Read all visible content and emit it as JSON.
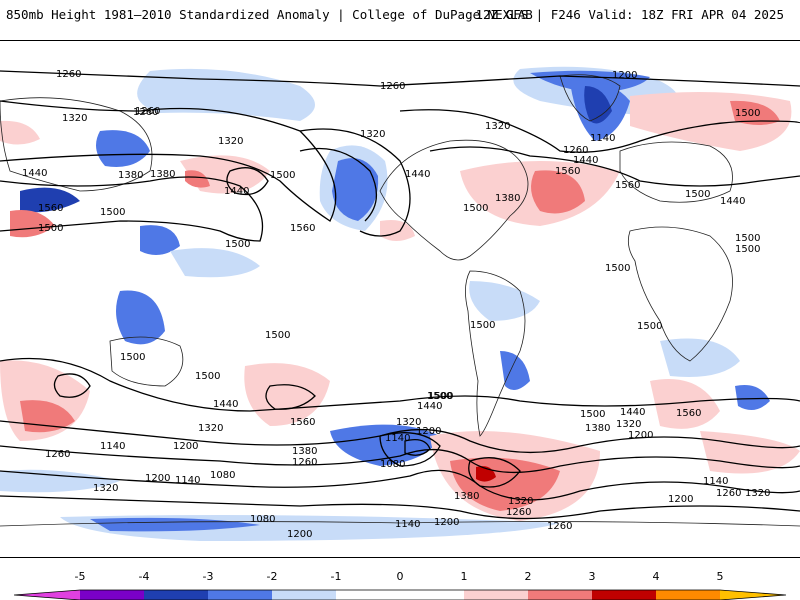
{
  "header": {
    "title_left": "850mb Height 1981–2010 Standardized Anomaly | College of DuPage NEXLAB",
    "title_right": "12Z GFS | F246 Valid: 18Z FRI APR 04 2025"
  },
  "legend": {
    "tick_labels": [
      "-5",
      "-4",
      "-3",
      "-2",
      "-1",
      "0",
      "1",
      "2",
      "3",
      "4",
      "5"
    ],
    "colors": {
      "neg5": "#e040e0",
      "neg4": "#7a00c8",
      "neg3": "#1f3fb0",
      "neg2": "#4f78e6",
      "neg1": "#c8dcf8",
      "zero": "#ffffff",
      "pos1": "#fbd0d0",
      "pos2": "#f07a7a",
      "pos3": "#c00000",
      "pos4": "#ff8a00",
      "pos5": "#ffc000"
    }
  },
  "map": {
    "contour_labels": [
      {
        "text": "1260"
      },
      {
        "text": "1260"
      },
      {
        "text": "1320"
      },
      {
        "text": "1440"
      },
      {
        "text": "1380"
      },
      {
        "text": "1560"
      },
      {
        "text": "1500"
      },
      {
        "text": "1500"
      },
      {
        "text": "1440"
      },
      {
        "text": "1500"
      },
      {
        "text": "1320"
      },
      {
        "text": "1260"
      },
      {
        "text": "1380"
      },
      {
        "text": "1560"
      },
      {
        "text": "1500"
      },
      {
        "text": "1260"
      },
      {
        "text": "1200"
      },
      {
        "text": "1320"
      },
      {
        "text": "1320"
      },
      {
        "text": "1140"
      },
      {
        "text": "1260"
      },
      {
        "text": "1440"
      },
      {
        "text": "1440"
      },
      {
        "text": "1380"
      },
      {
        "text": "1500"
      },
      {
        "text": "1500"
      },
      {
        "text": "1560"
      },
      {
        "text": "1560"
      },
      {
        "text": "1500"
      },
      {
        "text": "1500"
      },
      {
        "text": "1440"
      },
      {
        "text": "1500"
      },
      {
        "text": "1500"
      },
      {
        "text": "1500"
      },
      {
        "text": "1500"
      },
      {
        "text": "1500"
      },
      {
        "text": "1500"
      },
      {
        "text": "1500"
      },
      {
        "text": "1500"
      },
      {
        "text": "1560"
      },
      {
        "text": "1440"
      },
      {
        "text": "1320"
      },
      {
        "text": "1260"
      },
      {
        "text": "1140"
      },
      {
        "text": "1200"
      },
      {
        "text": "1200"
      },
      {
        "text": "1140"
      },
      {
        "text": "1080"
      },
      {
        "text": "1080"
      },
      {
        "text": "1320"
      },
      {
        "text": "1500"
      },
      {
        "text": "1440"
      },
      {
        "text": "1320"
      },
      {
        "text": "1200"
      },
      {
        "text": "1140"
      },
      {
        "text": "1380"
      },
      {
        "text": "1260"
      },
      {
        "text": "1080"
      },
      {
        "text": "1200"
      },
      {
        "text": "1140"
      },
      {
        "text": "1200"
      },
      {
        "text": "1260"
      },
      {
        "text": "1380"
      },
      {
        "text": "1320"
      },
      {
        "text": "1260"
      },
      {
        "text": "1500"
      },
      {
        "text": "1440"
      },
      {
        "text": "1320"
      },
      {
        "text": "1380"
      },
      {
        "text": "1200"
      },
      {
        "text": "1560"
      },
      {
        "text": "1140"
      },
      {
        "text": "1200"
      },
      {
        "text": "1260"
      },
      {
        "text": "1320"
      }
    ]
  }
}
